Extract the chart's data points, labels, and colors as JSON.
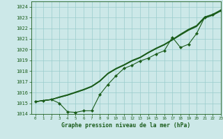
{
  "title": "Graphe pression niveau de la mer (hPa)",
  "bg_color": "#cce8e8",
  "grid_color": "#99cccc",
  "line_color": "#1a5c1a",
  "xlim": [
    -0.5,
    23
  ],
  "ylim": [
    1014,
    1024.5
  ],
  "yticks": [
    1014,
    1015,
    1016,
    1017,
    1018,
    1019,
    1020,
    1021,
    1022,
    1023,
    1024
  ],
  "xticks": [
    0,
    1,
    2,
    3,
    4,
    5,
    6,
    7,
    8,
    9,
    10,
    11,
    12,
    13,
    14,
    15,
    16,
    17,
    18,
    19,
    20,
    21,
    22,
    23
  ],
  "hours": [
    0,
    1,
    2,
    3,
    4,
    5,
    6,
    7,
    8,
    9,
    10,
    11,
    12,
    13,
    14,
    15,
    16,
    17,
    18,
    19,
    20,
    21,
    22,
    23
  ],
  "smooth1": [
    1015.15,
    1015.25,
    1015.35,
    1015.55,
    1015.75,
    1016.0,
    1016.25,
    1016.55,
    1017.05,
    1017.75,
    1018.2,
    1018.55,
    1018.95,
    1019.25,
    1019.7,
    1020.1,
    1020.45,
    1020.9,
    1021.4,
    1021.85,
    1022.2,
    1023.0,
    1023.25,
    1023.65
  ],
  "smooth2": [
    1015.15,
    1015.25,
    1015.35,
    1015.55,
    1015.75,
    1016.0,
    1016.25,
    1016.55,
    1017.05,
    1017.75,
    1018.2,
    1018.55,
    1018.95,
    1019.25,
    1019.7,
    1020.1,
    1020.45,
    1020.9,
    1021.35,
    1021.8,
    1022.15,
    1022.95,
    1023.2,
    1023.6
  ],
  "smooth3": [
    1015.15,
    1015.25,
    1015.35,
    1015.6,
    1015.8,
    1016.05,
    1016.3,
    1016.6,
    1017.1,
    1017.8,
    1018.25,
    1018.6,
    1019.0,
    1019.3,
    1019.75,
    1020.15,
    1020.5,
    1020.95,
    1021.45,
    1021.9,
    1022.25,
    1023.05,
    1023.3,
    1023.7
  ],
  "dotted_x": [
    0,
    1,
    2,
    3,
    4,
    5,
    6,
    7,
    8,
    9,
    10,
    11,
    12,
    13,
    14,
    15,
    16,
    17,
    18,
    19,
    20,
    21,
    22,
    23
  ],
  "dotted_y": [
    1015.15,
    1015.25,
    1015.35,
    1015.0,
    1014.2,
    1014.15,
    1014.3,
    1014.3,
    1015.8,
    1016.75,
    1017.55,
    1018.25,
    1018.55,
    1018.95,
    1019.2,
    1019.6,
    1019.9,
    1021.15,
    1020.2,
    1020.5,
    1021.5,
    1023.0,
    1023.25,
    1023.65
  ]
}
